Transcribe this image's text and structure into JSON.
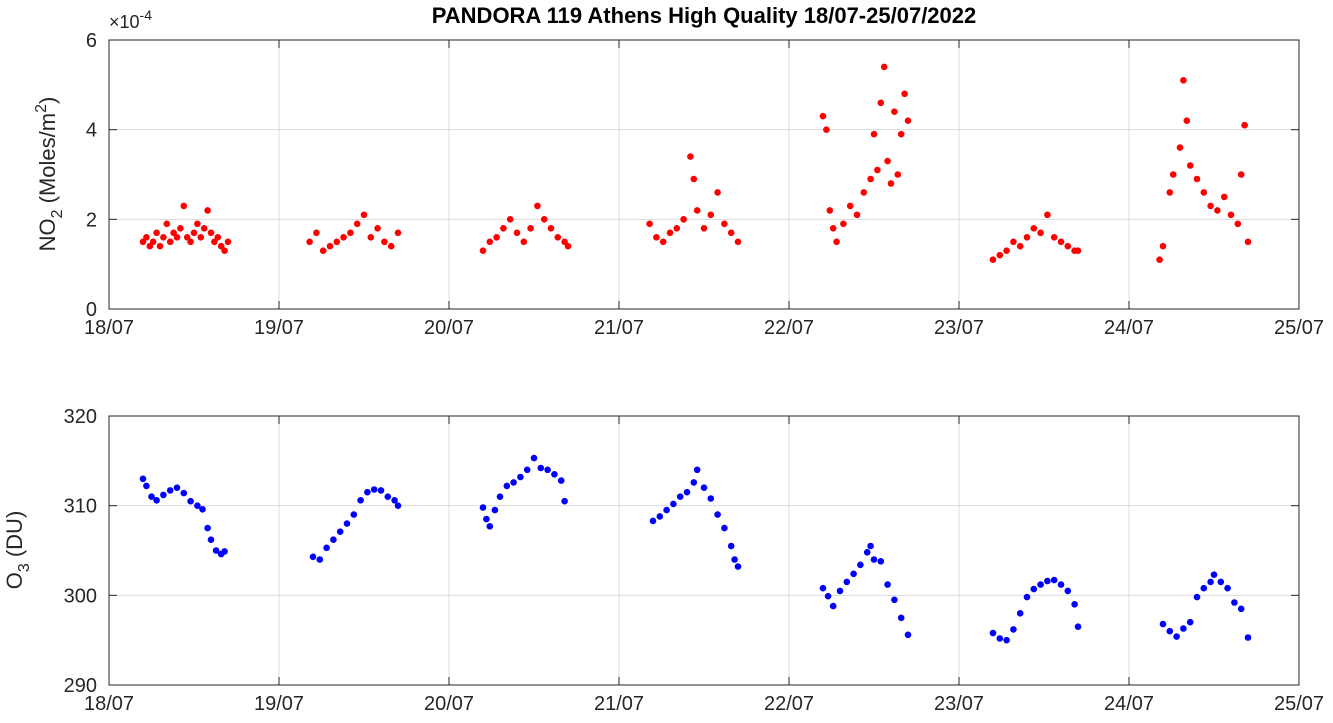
{
  "title": "PANDORA 119 Athens High Quality 18/07-25/07/2022",
  "chart_data": [
    {
      "type": "scatter",
      "title": "PANDORA 119 Athens High Quality 18/07-25/07/2022",
      "ylabel": "NO2 (Moles/m2)",
      "ylabel_parts": {
        "main": "NO",
        "sub": "2",
        "mid": " (Moles/m",
        "sup": "2",
        "end": ")"
      },
      "y_exponent_label": {
        "times": "×10",
        "power": "-4"
      },
      "color": "#ff0000",
      "xlim": [
        0,
        7
      ],
      "ylim": [
        0,
        6
      ],
      "x_ticks": [
        0,
        1,
        2,
        3,
        4,
        5,
        6,
        7
      ],
      "x_tick_labels": [
        "18/07",
        "19/07",
        "20/07",
        "21/07",
        "22/07",
        "23/07",
        "24/07",
        "25/07"
      ],
      "y_ticks": [
        0,
        2,
        4,
        6
      ],
      "y_tick_labels": [
        "0",
        "2",
        "4",
        "6"
      ],
      "grid": true,
      "units_note": "x = days since 18/07/2022 00:00, y in 1e-4 mol/m2",
      "series": [
        {
          "name": "NO2",
          "points": [
            [
              0.2,
              1.5
            ],
            [
              0.22,
              1.6
            ],
            [
              0.24,
              1.4
            ],
            [
              0.26,
              1.5
            ],
            [
              0.28,
              1.7
            ],
            [
              0.3,
              1.4
            ],
            [
              0.32,
              1.6
            ],
            [
              0.34,
              1.9
            ],
            [
              0.36,
              1.5
            ],
            [
              0.38,
              1.7
            ],
            [
              0.4,
              1.6
            ],
            [
              0.42,
              1.8
            ],
            [
              0.44,
              2.3
            ],
            [
              0.46,
              1.6
            ],
            [
              0.48,
              1.5
            ],
            [
              0.5,
              1.7
            ],
            [
              0.52,
              1.9
            ],
            [
              0.54,
              1.6
            ],
            [
              0.56,
              1.8
            ],
            [
              0.58,
              2.2
            ],
            [
              0.6,
              1.7
            ],
            [
              0.62,
              1.5
            ],
            [
              0.64,
              1.6
            ],
            [
              0.66,
              1.4
            ],
            [
              0.68,
              1.3
            ],
            [
              0.7,
              1.5
            ],
            [
              1.18,
              1.5
            ],
            [
              1.22,
              1.7
            ],
            [
              1.26,
              1.3
            ],
            [
              1.3,
              1.4
            ],
            [
              1.34,
              1.5
            ],
            [
              1.38,
              1.6
            ],
            [
              1.42,
              1.7
            ],
            [
              1.46,
              1.9
            ],
            [
              1.5,
              2.1
            ],
            [
              1.54,
              1.6
            ],
            [
              1.58,
              1.8
            ],
            [
              1.62,
              1.5
            ],
            [
              1.66,
              1.4
            ],
            [
              1.7,
              1.7
            ],
            [
              2.2,
              1.3
            ],
            [
              2.24,
              1.5
            ],
            [
              2.28,
              1.6
            ],
            [
              2.32,
              1.8
            ],
            [
              2.36,
              2.0
            ],
            [
              2.4,
              1.7
            ],
            [
              2.44,
              1.5
            ],
            [
              2.48,
              1.8
            ],
            [
              2.52,
              2.3
            ],
            [
              2.56,
              2.0
            ],
            [
              2.6,
              1.8
            ],
            [
              2.64,
              1.6
            ],
            [
              2.68,
              1.5
            ],
            [
              2.7,
              1.4
            ],
            [
              3.18,
              1.9
            ],
            [
              3.22,
              1.6
            ],
            [
              3.26,
              1.5
            ],
            [
              3.3,
              1.7
            ],
            [
              3.34,
              1.8
            ],
            [
              3.38,
              2.0
            ],
            [
              3.42,
              3.4
            ],
            [
              3.44,
              2.9
            ],
            [
              3.46,
              2.2
            ],
            [
              3.5,
              1.8
            ],
            [
              3.54,
              2.1
            ],
            [
              3.58,
              2.6
            ],
            [
              3.62,
              1.9
            ],
            [
              3.66,
              1.7
            ],
            [
              3.7,
              1.5
            ],
            [
              4.2,
              4.3
            ],
            [
              4.22,
              4.0
            ],
            [
              4.24,
              2.2
            ],
            [
              4.26,
              1.8
            ],
            [
              4.28,
              1.5
            ],
            [
              4.32,
              1.9
            ],
            [
              4.36,
              2.3
            ],
            [
              4.4,
              2.1
            ],
            [
              4.44,
              2.6
            ],
            [
              4.48,
              2.9
            ],
            [
              4.5,
              3.9
            ],
            [
              4.52,
              3.1
            ],
            [
              4.54,
              4.6
            ],
            [
              4.56,
              5.4
            ],
            [
              4.58,
              3.3
            ],
            [
              4.6,
              2.8
            ],
            [
              4.62,
              4.4
            ],
            [
              4.64,
              3.0
            ],
            [
              4.66,
              3.9
            ],
            [
              4.68,
              4.8
            ],
            [
              4.7,
              4.2
            ],
            [
              5.2,
              1.1
            ],
            [
              5.24,
              1.2
            ],
            [
              5.28,
              1.3
            ],
            [
              5.32,
              1.5
            ],
            [
              5.36,
              1.4
            ],
            [
              5.4,
              1.6
            ],
            [
              5.44,
              1.8
            ],
            [
              5.48,
              1.7
            ],
            [
              5.52,
              2.1
            ],
            [
              5.56,
              1.6
            ],
            [
              5.6,
              1.5
            ],
            [
              5.64,
              1.4
            ],
            [
              5.68,
              1.3
            ],
            [
              5.7,
              1.3
            ],
            [
              6.18,
              1.1
            ],
            [
              6.2,
              1.4
            ],
            [
              6.24,
              2.6
            ],
            [
              6.26,
              3.0
            ],
            [
              6.3,
              3.6
            ],
            [
              6.32,
              5.1
            ],
            [
              6.34,
              4.2
            ],
            [
              6.36,
              3.2
            ],
            [
              6.4,
              2.9
            ],
            [
              6.44,
              2.6
            ],
            [
              6.48,
              2.3
            ],
            [
              6.52,
              2.2
            ],
            [
              6.56,
              2.5
            ],
            [
              6.6,
              2.1
            ],
            [
              6.64,
              1.9
            ],
            [
              6.66,
              3.0
            ],
            [
              6.68,
              4.1
            ],
            [
              6.7,
              1.5
            ]
          ]
        }
      ]
    },
    {
      "type": "scatter",
      "title": "",
      "ylabel": "O3 (DU)",
      "ylabel_parts": {
        "main": "O",
        "sub": "3",
        "mid": " (DU)",
        "sup": "",
        "end": ""
      },
      "color": "#0000ff",
      "xlim": [
        0,
        7
      ],
      "ylim": [
        290,
        320
      ],
      "x_ticks": [
        0,
        1,
        2,
        3,
        4,
        5,
        6,
        7
      ],
      "x_tick_labels": [
        "18/07",
        "19/07",
        "20/07",
        "21/07",
        "22/07",
        "23/07",
        "24/07",
        "25/07"
      ],
      "y_ticks": [
        290,
        300,
        310,
        320
      ],
      "y_tick_labels": [
        "290",
        "300",
        "310",
        "320"
      ],
      "grid": true,
      "units_note": "x = days since 18/07/2022 00:00, y in DU",
      "series": [
        {
          "name": "O3",
          "points": [
            [
              0.2,
              313.0
            ],
            [
              0.22,
              312.2
            ],
            [
              0.25,
              311.0
            ],
            [
              0.28,
              310.6
            ],
            [
              0.32,
              311.2
            ],
            [
              0.36,
              311.7
            ],
            [
              0.4,
              312.0
            ],
            [
              0.44,
              311.4
            ],
            [
              0.48,
              310.5
            ],
            [
              0.52,
              310.0
            ],
            [
              0.55,
              309.6
            ],
            [
              0.58,
              307.5
            ],
            [
              0.6,
              306.2
            ],
            [
              0.63,
              305.0
            ],
            [
              0.66,
              304.6
            ],
            [
              0.68,
              304.9
            ],
            [
              1.2,
              304.3
            ],
            [
              1.24,
              304.0
            ],
            [
              1.28,
              305.3
            ],
            [
              1.32,
              306.2
            ],
            [
              1.36,
              307.1
            ],
            [
              1.4,
              308.0
            ],
            [
              1.44,
              309.0
            ],
            [
              1.48,
              310.6
            ],
            [
              1.52,
              311.5
            ],
            [
              1.56,
              311.8
            ],
            [
              1.6,
              311.7
            ],
            [
              1.64,
              311.0
            ],
            [
              1.68,
              310.6
            ],
            [
              1.7,
              310.0
            ],
            [
              2.2,
              309.8
            ],
            [
              2.22,
              308.5
            ],
            [
              2.24,
              307.7
            ],
            [
              2.27,
              309.5
            ],
            [
              2.3,
              311.0
            ],
            [
              2.34,
              312.2
            ],
            [
              2.38,
              312.6
            ],
            [
              2.42,
              313.2
            ],
            [
              2.46,
              314.0
            ],
            [
              2.5,
              315.3
            ],
            [
              2.54,
              314.2
            ],
            [
              2.58,
              314.0
            ],
            [
              2.62,
              313.5
            ],
            [
              2.66,
              312.8
            ],
            [
              2.68,
              310.5
            ],
            [
              3.2,
              308.3
            ],
            [
              3.24,
              308.8
            ],
            [
              3.28,
              309.5
            ],
            [
              3.32,
              310.2
            ],
            [
              3.36,
              311.0
            ],
            [
              3.4,
              311.5
            ],
            [
              3.44,
              312.6
            ],
            [
              3.46,
              314.0
            ],
            [
              3.5,
              312.0
            ],
            [
              3.54,
              310.8
            ],
            [
              3.58,
              309.0
            ],
            [
              3.62,
              307.5
            ],
            [
              3.66,
              305.5
            ],
            [
              3.68,
              304.0
            ],
            [
              3.7,
              303.2
            ],
            [
              4.2,
              300.8
            ],
            [
              4.23,
              299.9
            ],
            [
              4.26,
              298.8
            ],
            [
              4.3,
              300.5
            ],
            [
              4.34,
              301.5
            ],
            [
              4.38,
              302.4
            ],
            [
              4.42,
              303.4
            ],
            [
              4.46,
              304.8
            ],
            [
              4.48,
              305.5
            ],
            [
              4.5,
              304.0
            ],
            [
              4.54,
              303.8
            ],
            [
              4.58,
              301.2
            ],
            [
              4.62,
              299.5
            ],
            [
              4.66,
              297.5
            ],
            [
              4.7,
              295.6
            ],
            [
              5.2,
              295.8
            ],
            [
              5.24,
              295.2
            ],
            [
              5.28,
              295.0
            ],
            [
              5.32,
              296.2
            ],
            [
              5.36,
              298.0
            ],
            [
              5.4,
              299.8
            ],
            [
              5.44,
              300.7
            ],
            [
              5.48,
              301.2
            ],
            [
              5.52,
              301.6
            ],
            [
              5.56,
              301.7
            ],
            [
              5.6,
              301.2
            ],
            [
              5.64,
              300.5
            ],
            [
              5.68,
              299.0
            ],
            [
              5.7,
              296.5
            ],
            [
              6.2,
              296.8
            ],
            [
              6.24,
              296.0
            ],
            [
              6.28,
              295.4
            ],
            [
              6.32,
              296.3
            ],
            [
              6.36,
              297.0
            ],
            [
              6.4,
              299.8
            ],
            [
              6.44,
              300.8
            ],
            [
              6.48,
              301.5
            ],
            [
              6.5,
              302.3
            ],
            [
              6.54,
              301.5
            ],
            [
              6.58,
              300.8
            ],
            [
              6.62,
              299.2
            ],
            [
              6.66,
              298.5
            ],
            [
              6.7,
              295.3
            ]
          ]
        }
      ]
    }
  ]
}
